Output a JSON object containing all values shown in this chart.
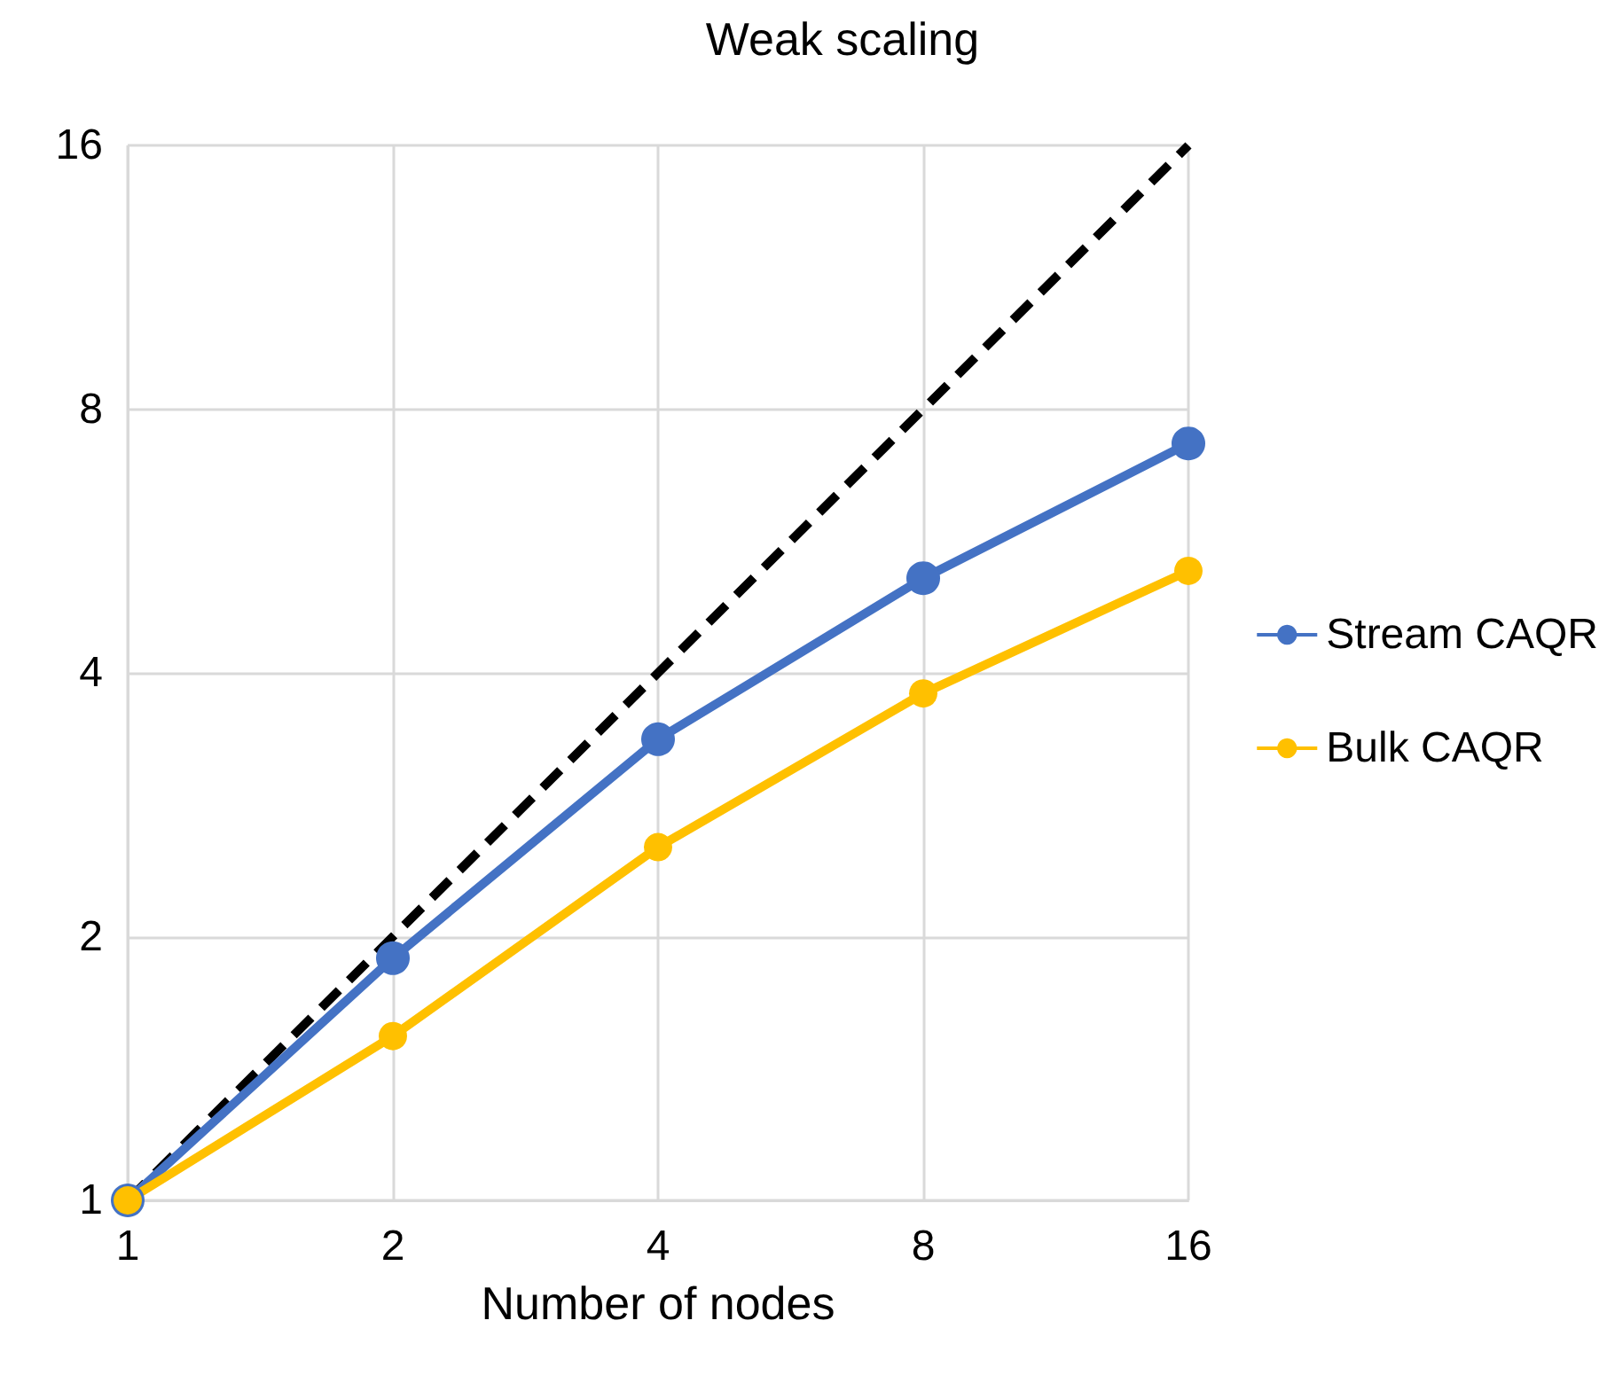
{
  "chart_data": {
    "type": "line",
    "title": "Weak scaling",
    "xlabel": "Number of nodes",
    "x": [
      1,
      2,
      4,
      8,
      16
    ],
    "series": [
      {
        "color": "#000000",
        "values": [
          1,
          2,
          4,
          8,
          16
        ],
        "line_style": "dashed",
        "marker": "none"
      },
      {
        "name": "Stream CAQR",
        "color": "#4472c4",
        "values": [
          1,
          1.89,
          3.36,
          5.13,
          7.31
        ]
      },
      {
        "name": "Bulk CAQR",
        "color": "#ffc000",
        "values": [
          1,
          1.54,
          2.53,
          3.79,
          5.23
        ]
      }
    ],
    "log": "xy",
    "xlim": [
      1,
      16
    ],
    "xticks": [
      1,
      2,
      4,
      8,
      16
    ],
    "ylim": [
      1,
      16
    ],
    "yticks": [
      1,
      2,
      4,
      8,
      16
    ],
    "grid": true,
    "legend": "right",
    "marker": "circle",
    "line_style": "solid"
  }
}
